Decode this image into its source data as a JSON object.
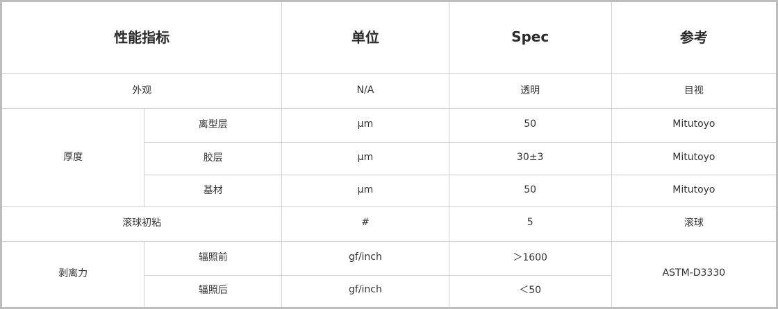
{
  "header": {
    "metric": "性能指标",
    "unit": "单位",
    "spec": "Spec",
    "reference": "参考"
  },
  "rows": {
    "appearance": {
      "name": "外观",
      "unit": "N/A",
      "spec": "透明",
      "ref": "目视"
    },
    "thickness": {
      "name": "厚度",
      "items": [
        {
          "sub": "离型层",
          "unit": "μm",
          "spec": "50",
          "ref": "Mitutoyo"
        },
        {
          "sub": "胶层",
          "unit": "μm",
          "spec": "30±3",
          "ref": "Mitutoyo"
        },
        {
          "sub": "基材",
          "unit": "μm",
          "spec": "50",
          "ref": "Mitutoyo"
        }
      ]
    },
    "tack": {
      "name": "滚球初粘",
      "unit": "#",
      "spec": "5",
      "ref": "滚球"
    },
    "peel": {
      "name": "剥离力",
      "ref": "ASTM-D3330",
      "items": [
        {
          "sub": "辐照前",
          "unit": "gf/inch",
          "spec": "＞1600"
        },
        {
          "sub": "辐照后",
          "unit": "gf/inch",
          "spec": "＜50"
        }
      ]
    }
  }
}
